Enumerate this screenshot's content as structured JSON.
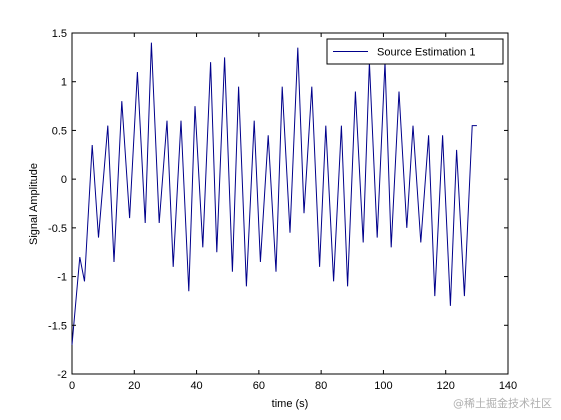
{
  "chart_data": {
    "type": "line",
    "xlabel": "time (s)",
    "ylabel": "Signal Amplitude",
    "xlim": [
      0,
      140
    ],
    "ylim": [
      -2,
      1.5
    ],
    "xticks": [
      0,
      20,
      40,
      60,
      80,
      100,
      120,
      140
    ],
    "yticks": [
      -2,
      -1.5,
      -1,
      -0.5,
      0,
      0.5,
      1,
      1.5
    ],
    "grid": false,
    "legend_position": "top-right",
    "series": [
      {
        "name": "Source Estimation 1",
        "color": "#00008b",
        "x": [
          0,
          2.5,
          4,
          6.5,
          8.5,
          11.5,
          13.5,
          16,
          18.5,
          21,
          23.5,
          25.5,
          28,
          30.5,
          32.5,
          35,
          37.5,
          39.5,
          42,
          44.5,
          46.5,
          49,
          51.5,
          53.5,
          56,
          58.5,
          60.5,
          63,
          65.5,
          67.5,
          70,
          72.5,
          74.5,
          77,
          79.5,
          81.5,
          84,
          86.5,
          88.5,
          91,
          93.5,
          95.5,
          98,
          100.5,
          102.5,
          105,
          107.5,
          109.5,
          112,
          114.5,
          116.5,
          119,
          121.5,
          123.5,
          126,
          128.5,
          130
        ],
        "y": [
          -1.7,
          -0.8,
          -1.05,
          0.35,
          -0.6,
          0.55,
          -0.85,
          0.8,
          -0.4,
          1.1,
          -0.45,
          1.4,
          -0.45,
          0.6,
          -0.9,
          0.6,
          -1.15,
          0.75,
          -0.7,
          1.2,
          -0.75,
          1.25,
          -0.95,
          0.95,
          -1.1,
          0.6,
          -0.85,
          0.45,
          -0.95,
          0.95,
          -0.55,
          1.35,
          -0.35,
          0.95,
          -0.9,
          0.55,
          -1.05,
          0.55,
          -1.1,
          0.9,
          -0.65,
          1.2,
          -0.6,
          1.2,
          -0.7,
          0.9,
          -0.5,
          0.55,
          -0.65,
          0.45,
          -1.2,
          0.45,
          -1.3,
          0.3,
          -1.2,
          0.55,
          0.55
        ]
      }
    ]
  },
  "watermark": "@稀土掘金技术社区"
}
